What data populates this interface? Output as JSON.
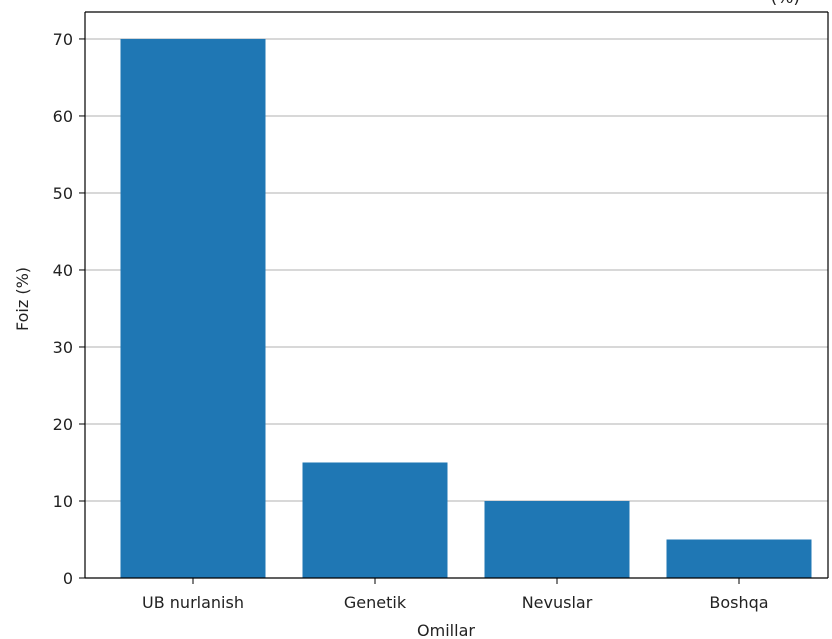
{
  "chart_data": {
    "type": "bar",
    "title": "(%)",
    "xlabel": "Omillar",
    "ylabel": "Foiz (%)",
    "categories": [
      "UB nurlanish",
      "Genetik",
      "Nevuslar",
      "Boshqa"
    ],
    "values": [
      70,
      15,
      10,
      5
    ],
    "ylim": [
      0,
      73.5
    ],
    "yticks": [
      0,
      10,
      20,
      30,
      40,
      50,
      60,
      70
    ],
    "grid": "y",
    "bar_color": "#1f77b4",
    "grid_color": "#b0b0b0"
  }
}
